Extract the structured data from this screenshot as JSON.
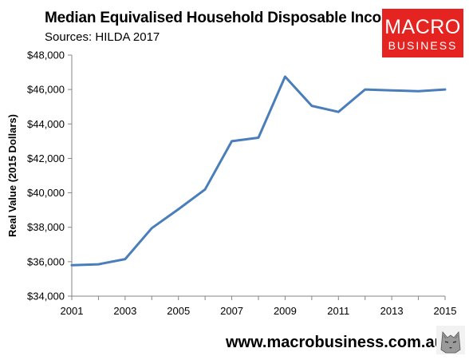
{
  "header": {
    "title": "Median Equivalised Household Disposable Income",
    "subtitle": "Sources: HILDA 2017"
  },
  "logo": {
    "line1": "MACRO",
    "line2": "BUSINESS"
  },
  "footer": {
    "url": "www.macrobusiness.com.au"
  },
  "colors": {
    "line": "#4a7ebb",
    "logo_red": "#e52321",
    "axis": "#868686"
  },
  "icons": {
    "footer_logo": "wolf-icon"
  },
  "chart_data": {
    "type": "line",
    "title": "Median Equivalised Household Disposable Income",
    "subtitle": "Sources: HILDA 2017",
    "xlabel": "",
    "ylabel": "Real Value (2015 Dollars)",
    "x": [
      2001,
      2002,
      2003,
      2004,
      2005,
      2006,
      2007,
      2008,
      2009,
      2010,
      2011,
      2012,
      2013,
      2014,
      2015
    ],
    "series": [
      {
        "values": [
          35800,
          35850,
          36150,
          37950,
          39050,
          40200,
          43000,
          43200,
          46750,
          45050,
          44700,
          46000,
          45950,
          45900,
          46000
        ]
      }
    ],
    "xlim": [
      2001,
      2015
    ],
    "ylim": [
      34000,
      48000
    ],
    "x_ticks": [
      2001,
      2003,
      2005,
      2007,
      2009,
      2011,
      2013,
      2015
    ],
    "x_tick_labels": [
      "2001",
      "2003",
      "2005",
      "2007",
      "2009",
      "2011",
      "2013",
      "2015"
    ],
    "y_ticks": [
      34000,
      36000,
      38000,
      40000,
      42000,
      44000,
      46000,
      48000
    ],
    "y_tick_labels": [
      "$34,000",
      "$36,000",
      "$38,000",
      "$40,000",
      "$42,000",
      "$44,000",
      "$46,000",
      "$48,000"
    ],
    "grid": false,
    "legend": "none"
  }
}
